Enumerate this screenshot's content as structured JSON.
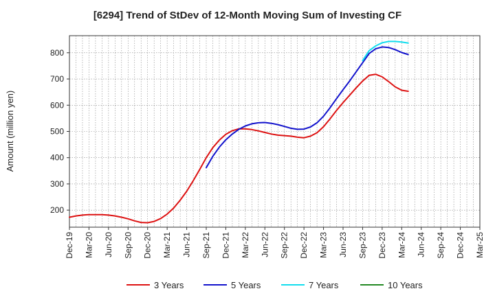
{
  "chart_data": {
    "type": "line",
    "title": "[6294]  Trend of StDev of 12-Month Moving Sum of Investing CF",
    "xlabel": "",
    "ylabel": "Amount (million yen)",
    "x_ticks": [
      "Dec-19",
      "Mar-20",
      "Jun-20",
      "Sep-20",
      "Dec-20",
      "Mar-21",
      "Jun-21",
      "Sep-21",
      "Dec-21",
      "Mar-22",
      "Jun-22",
      "Sep-22",
      "Dec-22",
      "Mar-23",
      "Jun-23",
      "Sep-23",
      "Dec-23",
      "Mar-24",
      "Jun-24",
      "Sep-24",
      "Dec-24",
      "Mar-25"
    ],
    "y_ticks": [
      200,
      300,
      400,
      500,
      600,
      700,
      800
    ],
    "ylim": [
      135,
      865
    ],
    "grid": true,
    "legend_position": "bottom",
    "series": [
      {
        "name": "3 Years",
        "color": "#dd1111",
        "points": [
          [
            "Dec-19",
            173
          ],
          [
            "Jan-20",
            178
          ],
          [
            "Feb-20",
            181
          ],
          [
            "Mar-20",
            183
          ],
          [
            "Apr-20",
            183
          ],
          [
            "May-20",
            183
          ],
          [
            "Jun-20",
            181
          ],
          [
            "Jul-20",
            178
          ],
          [
            "Aug-20",
            173
          ],
          [
            "Sep-20",
            167
          ],
          [
            "Oct-20",
            159
          ],
          [
            "Nov-20",
            153
          ],
          [
            "Dec-20",
            152
          ],
          [
            "Jan-21",
            157
          ],
          [
            "Feb-21",
            168
          ],
          [
            "Mar-21",
            185
          ],
          [
            "Apr-21",
            208
          ],
          [
            "May-21",
            238
          ],
          [
            "Jun-21",
            272
          ],
          [
            "Jul-21",
            312
          ],
          [
            "Aug-21",
            355
          ],
          [
            "Sep-21",
            400
          ],
          [
            "Oct-21",
            438
          ],
          [
            "Nov-21",
            467
          ],
          [
            "Dec-21",
            489
          ],
          [
            "Jan-22",
            503
          ],
          [
            "Feb-22",
            510
          ],
          [
            "Mar-22",
            510
          ],
          [
            "Apr-22",
            507
          ],
          [
            "May-22",
            502
          ],
          [
            "Jun-22",
            496
          ],
          [
            "Jul-22",
            490
          ],
          [
            "Aug-22",
            486
          ],
          [
            "Sep-22",
            484
          ],
          [
            "Oct-22",
            482
          ],
          [
            "Nov-22",
            478
          ],
          [
            "Dec-22",
            476
          ],
          [
            "Jan-23",
            482
          ],
          [
            "Feb-23",
            495
          ],
          [
            "Mar-23",
            518
          ],
          [
            "Apr-23",
            548
          ],
          [
            "May-23",
            580
          ],
          [
            "Jun-23",
            610
          ],
          [
            "Jul-23",
            638
          ],
          [
            "Aug-23",
            666
          ],
          [
            "Sep-23",
            692
          ],
          [
            "Oct-23",
            714
          ],
          [
            "Nov-23",
            718
          ],
          [
            "Dec-23",
            708
          ],
          [
            "Jan-24",
            690
          ],
          [
            "Feb-24",
            670
          ],
          [
            "Mar-24",
            657
          ],
          [
            "Apr-24",
            653
          ]
        ]
      },
      {
        "name": "5 Years",
        "color": "#1111cc",
        "points": [
          [
            "Sep-21",
            362
          ],
          [
            "Oct-21",
            405
          ],
          [
            "Nov-21",
            440
          ],
          [
            "Dec-21",
            468
          ],
          [
            "Jan-22",
            490
          ],
          [
            "Feb-22",
            508
          ],
          [
            "Mar-22",
            521
          ],
          [
            "Apr-22",
            529
          ],
          [
            "May-22",
            533
          ],
          [
            "Jun-22",
            534
          ],
          [
            "Jul-22",
            531
          ],
          [
            "Aug-22",
            526
          ],
          [
            "Sep-22",
            519
          ],
          [
            "Oct-22",
            512
          ],
          [
            "Nov-22",
            508
          ],
          [
            "Dec-22",
            509
          ],
          [
            "Jan-23",
            517
          ],
          [
            "Feb-23",
            533
          ],
          [
            "Mar-23",
            558
          ],
          [
            "Apr-23",
            590
          ],
          [
            "May-23",
            625
          ],
          [
            "Jun-23",
            659
          ],
          [
            "Jul-23",
            692
          ],
          [
            "Aug-23",
            727
          ],
          [
            "Sep-23",
            762
          ],
          [
            "Oct-23",
            797
          ],
          [
            "Nov-23",
            815
          ],
          [
            "Dec-23",
            822
          ],
          [
            "Jan-24",
            820
          ],
          [
            "Feb-24",
            812
          ],
          [
            "Mar-24",
            801
          ],
          [
            "Apr-24",
            793
          ]
        ]
      },
      {
        "name": "7 Years",
        "color": "#11ddee",
        "points": [
          [
            "Sep-23",
            770
          ],
          [
            "Oct-23",
            808
          ],
          [
            "Nov-23",
            826
          ],
          [
            "Dec-23",
            838
          ],
          [
            "Jan-24",
            843
          ],
          [
            "Feb-24",
            843
          ],
          [
            "Mar-24",
            841
          ],
          [
            "Apr-24",
            837
          ]
        ]
      },
      {
        "name": "10 Years",
        "color": "#228822",
        "points": []
      }
    ]
  }
}
